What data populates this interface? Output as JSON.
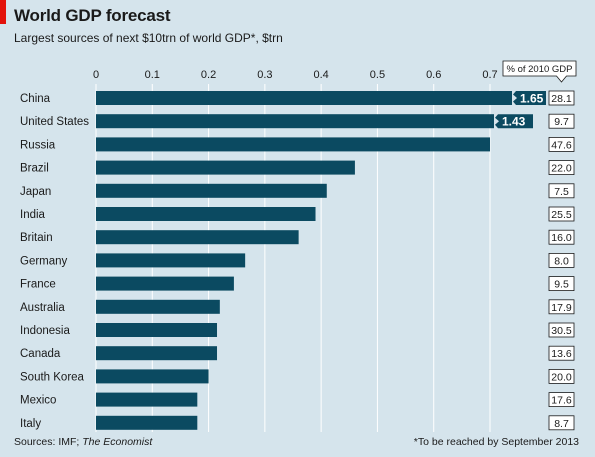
{
  "title": "World GDP forecast",
  "subtitle": "Largest sources of next $10trn of world GDP*, $trn",
  "source_prefix": "Sources: IMF; ",
  "source_italic": "The Economist",
  "footnote": "*To be reached by September 2013",
  "colors": {
    "bar": "#0b4a61",
    "background": "#d5e4ec",
    "accent": "#e3120b",
    "grid": "#ffffff"
  },
  "chart_data": {
    "type": "bar",
    "orientation": "horizontal",
    "categories": [
      "China",
      "United States",
      "Russia",
      "Brazil",
      "Japan",
      "India",
      "Britain",
      "Germany",
      "France",
      "Australia",
      "Indonesia",
      "Canada",
      "South Korea",
      "Mexico",
      "Italy"
    ],
    "values": [
      1.65,
      1.43,
      0.7,
      0.46,
      0.41,
      0.39,
      0.36,
      0.265,
      0.245,
      0.22,
      0.215,
      0.215,
      0.2,
      0.18,
      0.18
    ],
    "value_labels": [
      "1.65",
      "1.43",
      null,
      null,
      null,
      null,
      null,
      null,
      null,
      null,
      null,
      null,
      null,
      null,
      null
    ],
    "truncated": [
      true,
      true,
      false,
      false,
      false,
      false,
      false,
      false,
      false,
      false,
      false,
      false,
      false,
      false,
      false
    ],
    "xlim": [
      0,
      0.7
    ],
    "xticks": [
      "0",
      "0.1",
      "0.2",
      "0.3",
      "0.4",
      "0.5",
      "0.6",
      "0.7"
    ],
    "grid": true,
    "side_column": {
      "header": "% of 2010 GDP",
      "values": [
        "28.1",
        "9.7",
        "47.6",
        "22.0",
        "7.5",
        "25.5",
        "16.0",
        "8.0",
        "9.5",
        "17.9",
        "30.5",
        "13.6",
        "20.0",
        "17.6",
        "8.7"
      ]
    }
  }
}
